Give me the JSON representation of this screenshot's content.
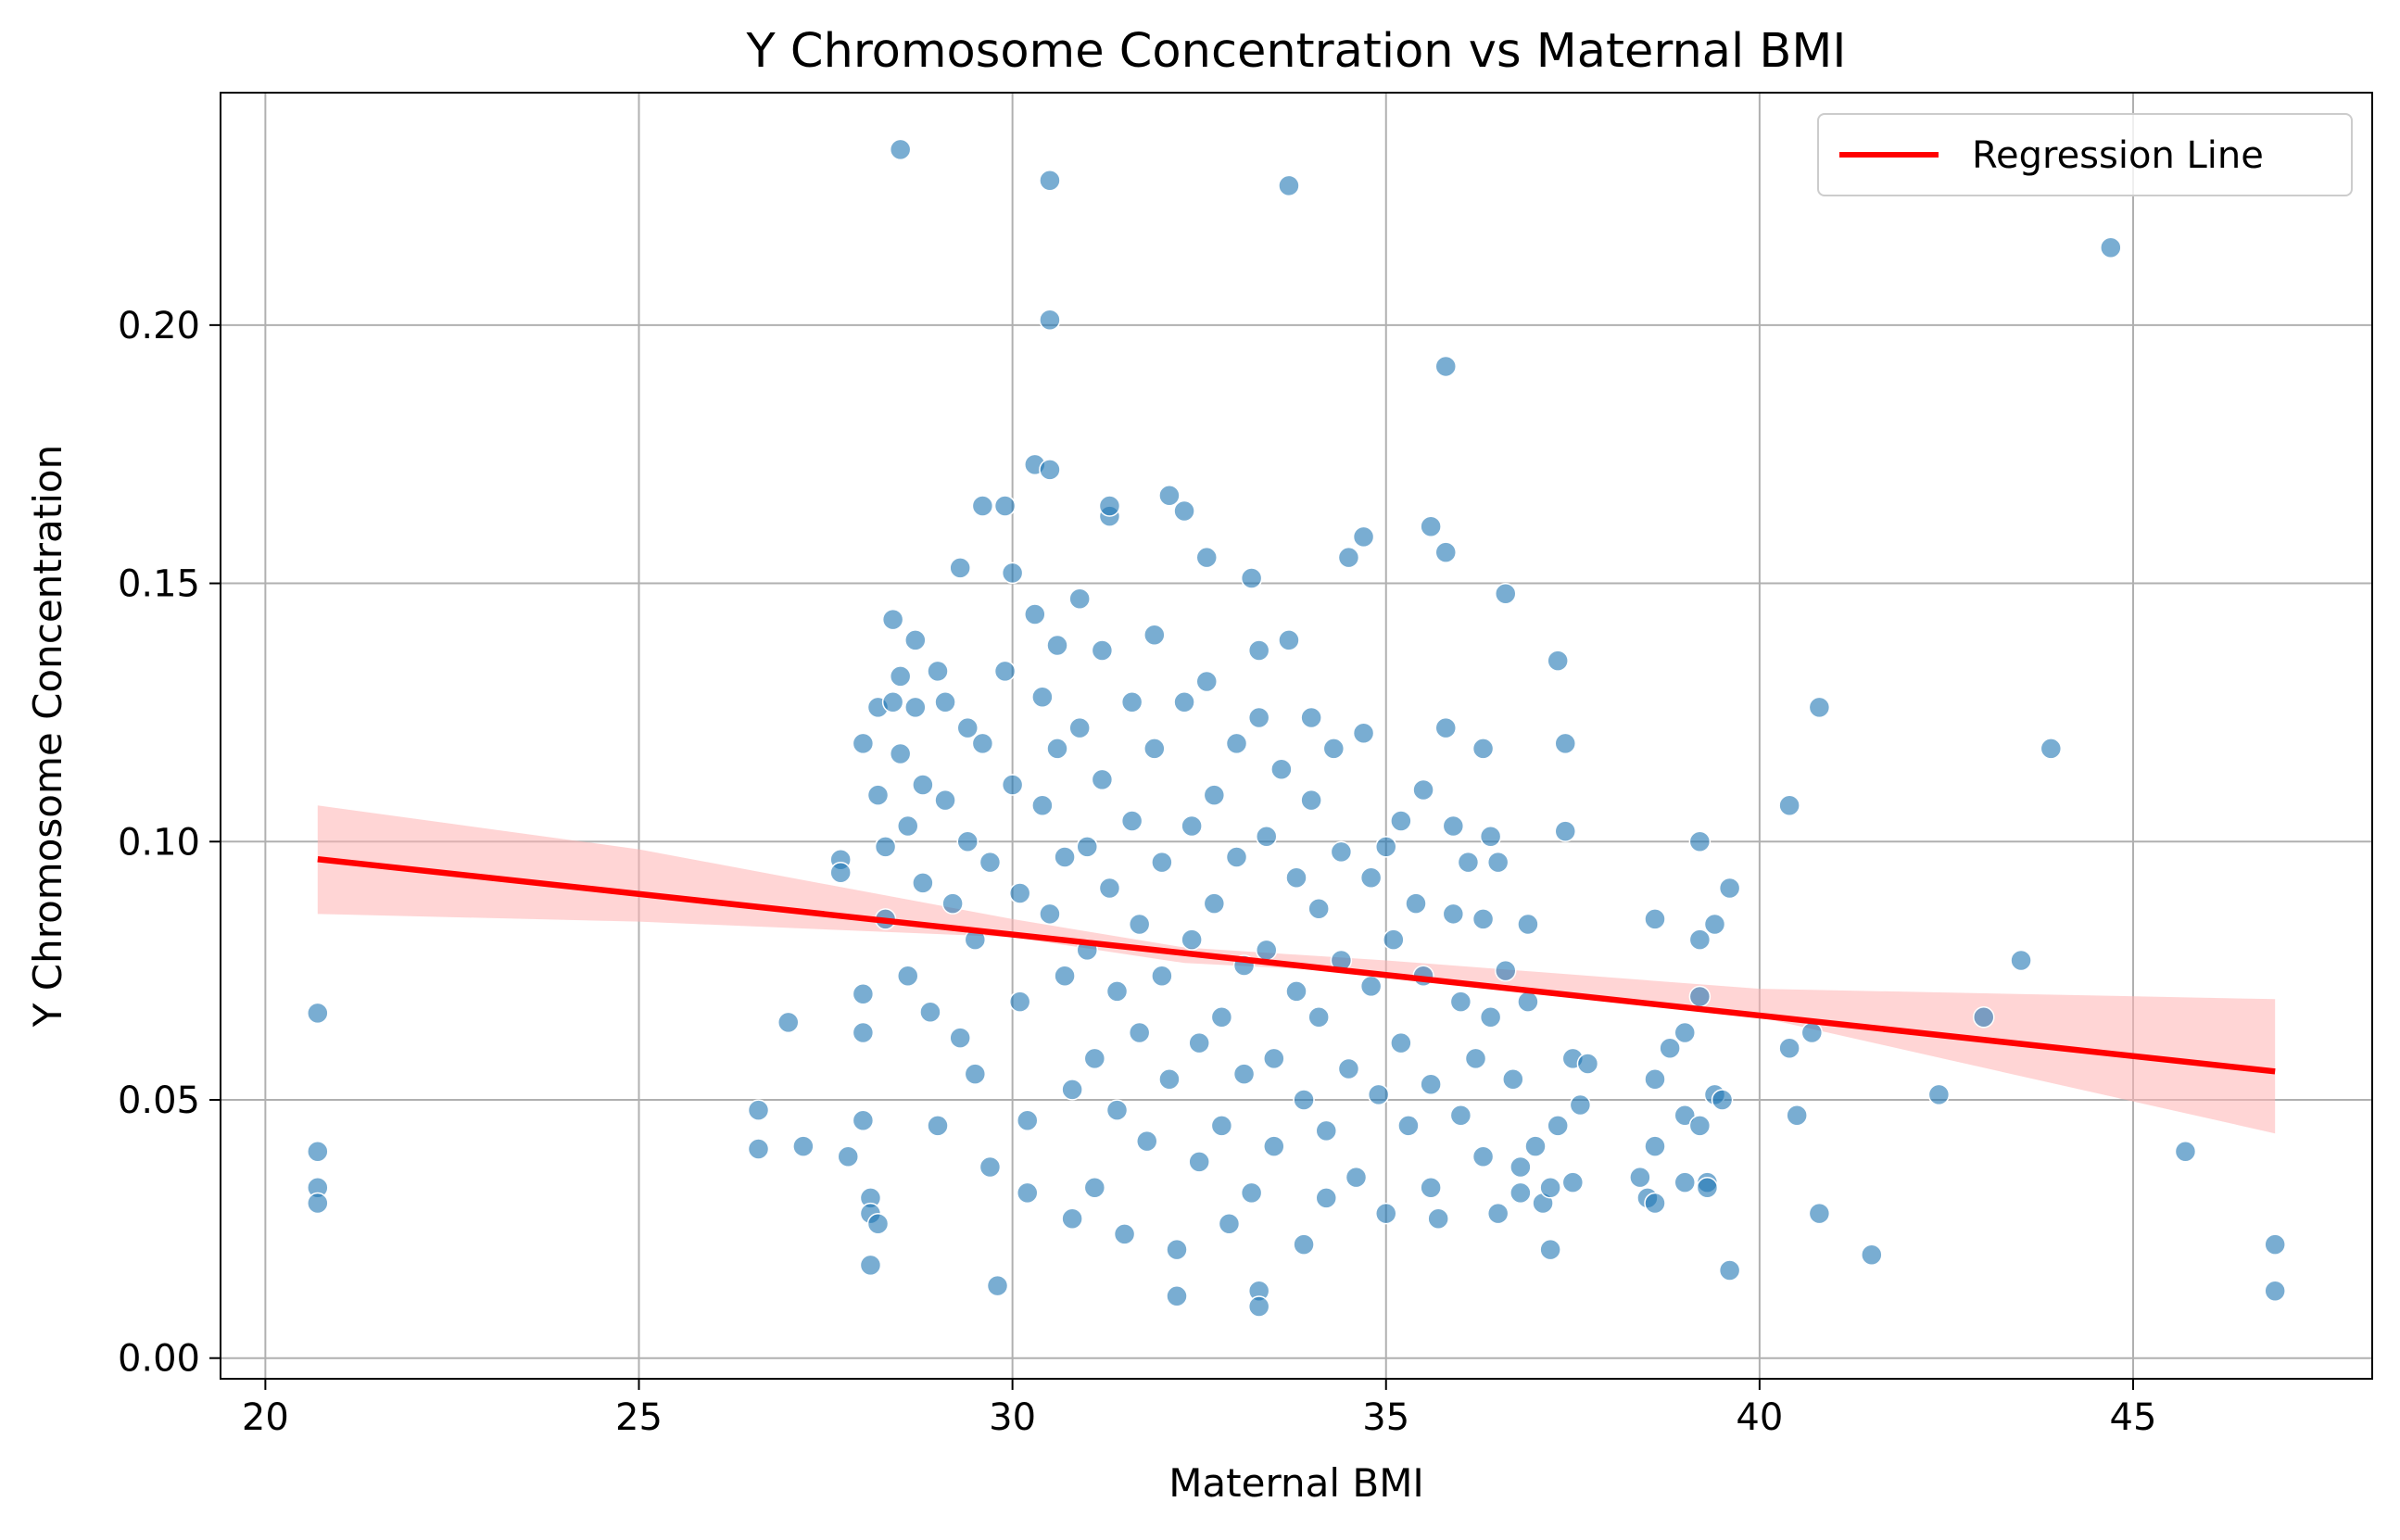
{
  "chart_data": {
    "type": "scatter",
    "title": "Y Chromosome Concentration vs Maternal BMI",
    "xlabel": "Maternal BMI",
    "ylabel": "Y Chromosome Concentration",
    "xlim": [
      19.4,
      48.2
    ],
    "ylim": [
      -0.004,
      0.245
    ],
    "x_ticks": [
      20,
      25,
      30,
      35,
      40,
      45
    ],
    "x_tick_labels": [
      "20",
      "25",
      "30",
      "35",
      "40",
      "45"
    ],
    "y_ticks": [
      0.0,
      0.05,
      0.1,
      0.15,
      0.2
    ],
    "y_tick_labels": [
      "0.00",
      "0.05",
      "0.10",
      "0.15",
      "0.20"
    ],
    "grid": true,
    "legend": {
      "placement": "top-right",
      "entries": [
        "Regression Line"
      ]
    },
    "colors": {
      "points": "#1f77b4",
      "point_edge": "#ffffff",
      "regression_line": "#ff0000",
      "confidence_band": "#ffb3b3",
      "grid": "#b0b0b0"
    },
    "regression": {
      "x": [
        20.7,
        46.9
      ],
      "y": [
        0.0966,
        0.0555
      ],
      "band": {
        "x": [
          20.7,
          25.0,
          30.0,
          32.3,
          35.0,
          40.0,
          46.9
        ],
        "lower": [
          0.086,
          0.0845,
          0.0815,
          0.0765,
          0.0745,
          0.066,
          0.0435
        ],
        "upper": [
          0.107,
          0.0985,
          0.085,
          0.0795,
          0.077,
          0.0715,
          0.0695
        ]
      }
    },
    "series": [
      {
        "points": [
          [
            20.7,
            0.0668
          ],
          [
            20.7,
            0.04
          ],
          [
            20.7,
            0.033
          ],
          [
            20.7,
            0.03
          ],
          [
            26.6,
            0.048
          ],
          [
            26.6,
            0.0405
          ],
          [
            27.0,
            0.065
          ],
          [
            27.2,
            0.041
          ],
          [
            27.7,
            0.0965
          ],
          [
            27.7,
            0.094
          ],
          [
            27.8,
            0.039
          ],
          [
            28.0,
            0.119
          ],
          [
            28.0,
            0.0705
          ],
          [
            28.0,
            0.063
          ],
          [
            28.0,
            0.046
          ],
          [
            28.1,
            0.031
          ],
          [
            28.1,
            0.028
          ],
          [
            28.1,
            0.018
          ],
          [
            28.2,
            0.026
          ],
          [
            28.2,
            0.126
          ],
          [
            28.2,
            0.109
          ],
          [
            28.3,
            0.099
          ],
          [
            28.3,
            0.085
          ],
          [
            28.4,
            0.143
          ],
          [
            28.4,
            0.127
          ],
          [
            28.5,
            0.132
          ],
          [
            28.5,
            0.117
          ],
          [
            28.5,
            0.234
          ],
          [
            28.6,
            0.103
          ],
          [
            28.6,
            0.074
          ],
          [
            28.7,
            0.139
          ],
          [
            28.7,
            0.126
          ],
          [
            28.8,
            0.111
          ],
          [
            28.8,
            0.092
          ],
          [
            28.9,
            0.067
          ],
          [
            29.0,
            0.045
          ],
          [
            29.0,
            0.133
          ],
          [
            29.1,
            0.127
          ],
          [
            29.1,
            0.108
          ],
          [
            29.2,
            0.088
          ],
          [
            29.3,
            0.062
          ],
          [
            29.3,
            0.153
          ],
          [
            29.4,
            0.122
          ],
          [
            29.4,
            0.1
          ],
          [
            29.5,
            0.081
          ],
          [
            29.5,
            0.055
          ],
          [
            29.6,
            0.165
          ],
          [
            29.6,
            0.119
          ],
          [
            29.7,
            0.096
          ],
          [
            29.7,
            0.037
          ],
          [
            29.8,
            0.014
          ],
          [
            29.9,
            0.165
          ],
          [
            29.9,
            0.133
          ],
          [
            30.0,
            0.152
          ],
          [
            30.0,
            0.111
          ],
          [
            30.1,
            0.09
          ],
          [
            30.1,
            0.069
          ],
          [
            30.2,
            0.046
          ],
          [
            30.2,
            0.032
          ],
          [
            30.3,
            0.173
          ],
          [
            30.3,
            0.144
          ],
          [
            30.4,
            0.128
          ],
          [
            30.4,
            0.107
          ],
          [
            30.5,
            0.086
          ],
          [
            30.5,
            0.228
          ],
          [
            30.5,
            0.201
          ],
          [
            30.5,
            0.172
          ],
          [
            30.6,
            0.138
          ],
          [
            30.6,
            0.118
          ],
          [
            30.7,
            0.097
          ],
          [
            30.7,
            0.074
          ],
          [
            30.8,
            0.052
          ],
          [
            30.8,
            0.027
          ],
          [
            30.9,
            0.147
          ],
          [
            30.9,
            0.122
          ],
          [
            31.0,
            0.099
          ],
          [
            31.0,
            0.079
          ],
          [
            31.1,
            0.058
          ],
          [
            31.1,
            0.033
          ],
          [
            31.2,
            0.137
          ],
          [
            31.2,
            0.112
          ],
          [
            31.3,
            0.163
          ],
          [
            31.3,
            0.165
          ],
          [
            31.3,
            0.091
          ],
          [
            31.4,
            0.071
          ],
          [
            31.4,
            0.048
          ],
          [
            31.5,
            0.024
          ],
          [
            31.6,
            0.127
          ],
          [
            31.6,
            0.104
          ],
          [
            31.7,
            0.084
          ],
          [
            31.7,
            0.063
          ],
          [
            31.8,
            0.042
          ],
          [
            31.9,
            0.14
          ],
          [
            31.9,
            0.118
          ],
          [
            32.0,
            0.096
          ],
          [
            32.0,
            0.074
          ],
          [
            32.1,
            0.054
          ],
          [
            32.1,
            0.167
          ],
          [
            32.2,
            0.012
          ],
          [
            32.2,
            0.021
          ],
          [
            32.3,
            0.164
          ],
          [
            32.3,
            0.127
          ],
          [
            32.4,
            0.103
          ],
          [
            32.4,
            0.081
          ],
          [
            32.5,
            0.061
          ],
          [
            32.5,
            0.038
          ],
          [
            32.6,
            0.155
          ],
          [
            32.6,
            0.131
          ],
          [
            32.7,
            0.109
          ],
          [
            32.7,
            0.088
          ],
          [
            32.8,
            0.066
          ],
          [
            32.8,
            0.045
          ],
          [
            32.9,
            0.026
          ],
          [
            33.0,
            0.119
          ],
          [
            33.0,
            0.097
          ],
          [
            33.1,
            0.076
          ],
          [
            33.1,
            0.055
          ],
          [
            33.2,
            0.151
          ],
          [
            33.2,
            0.032
          ],
          [
            33.3,
            0.137
          ],
          [
            33.3,
            0.124
          ],
          [
            33.3,
            0.013
          ],
          [
            33.3,
            0.01
          ],
          [
            33.4,
            0.101
          ],
          [
            33.4,
            0.079
          ],
          [
            33.5,
            0.058
          ],
          [
            33.5,
            0.041
          ],
          [
            33.6,
            0.114
          ],
          [
            33.7,
            0.227
          ],
          [
            33.7,
            0.139
          ],
          [
            33.8,
            0.093
          ],
          [
            33.8,
            0.071
          ],
          [
            33.9,
            0.05
          ],
          [
            33.9,
            0.022
          ],
          [
            34.0,
            0.124
          ],
          [
            34.0,
            0.108
          ],
          [
            34.1,
            0.087
          ],
          [
            34.1,
            0.066
          ],
          [
            34.2,
            0.044
          ],
          [
            34.2,
            0.031
          ],
          [
            34.3,
            0.118
          ],
          [
            34.4,
            0.098
          ],
          [
            34.4,
            0.077
          ],
          [
            34.5,
            0.155
          ],
          [
            34.5,
            0.056
          ],
          [
            34.6,
            0.035
          ],
          [
            34.7,
            0.159
          ],
          [
            34.7,
            0.121
          ],
          [
            34.8,
            0.093
          ],
          [
            34.8,
            0.072
          ],
          [
            34.9,
            0.051
          ],
          [
            35.0,
            0.028
          ],
          [
            35.0,
            0.099
          ],
          [
            35.1,
            0.081
          ],
          [
            35.2,
            0.104
          ],
          [
            35.2,
            0.061
          ],
          [
            35.3,
            0.045
          ],
          [
            35.4,
            0.088
          ],
          [
            35.5,
            0.11
          ],
          [
            35.5,
            0.074
          ],
          [
            35.6,
            0.161
          ],
          [
            35.6,
            0.053
          ],
          [
            35.6,
            0.033
          ],
          [
            35.7,
            0.027
          ],
          [
            35.8,
            0.156
          ],
          [
            35.8,
            0.122
          ],
          [
            35.8,
            0.192
          ],
          [
            35.9,
            0.103
          ],
          [
            35.9,
            0.086
          ],
          [
            36.0,
            0.069
          ],
          [
            36.0,
            0.047
          ],
          [
            36.1,
            0.096
          ],
          [
            36.2,
            0.058
          ],
          [
            36.3,
            0.118
          ],
          [
            36.3,
            0.085
          ],
          [
            36.3,
            0.039
          ],
          [
            36.4,
            0.101
          ],
          [
            36.4,
            0.066
          ],
          [
            36.5,
            0.028
          ],
          [
            36.5,
            0.096
          ],
          [
            36.6,
            0.148
          ],
          [
            36.6,
            0.075
          ],
          [
            36.7,
            0.054
          ],
          [
            36.8,
            0.037
          ],
          [
            36.8,
            0.032
          ],
          [
            36.9,
            0.084
          ],
          [
            36.9,
            0.069
          ],
          [
            37.0,
            0.041
          ],
          [
            37.1,
            0.03
          ],
          [
            37.2,
            0.021
          ],
          [
            37.2,
            0.033
          ],
          [
            37.3,
            0.135
          ],
          [
            37.3,
            0.045
          ],
          [
            37.4,
            0.119
          ],
          [
            37.4,
            0.102
          ],
          [
            37.5,
            0.058
          ],
          [
            37.5,
            0.034
          ],
          [
            37.6,
            0.049
          ],
          [
            37.7,
            0.057
          ],
          [
            38.4,
            0.035
          ],
          [
            38.5,
            0.031
          ],
          [
            38.6,
            0.085
          ],
          [
            38.6,
            0.054
          ],
          [
            38.6,
            0.03
          ],
          [
            38.6,
            0.041
          ],
          [
            38.8,
            0.06
          ],
          [
            39.0,
            0.063
          ],
          [
            39.0,
            0.047
          ],
          [
            39.0,
            0.034
          ],
          [
            39.2,
            0.1
          ],
          [
            39.2,
            0.081
          ],
          [
            39.2,
            0.07
          ],
          [
            39.2,
            0.045
          ],
          [
            39.3,
            0.034
          ],
          [
            39.3,
            0.033
          ],
          [
            39.4,
            0.084
          ],
          [
            39.4,
            0.051
          ],
          [
            39.5,
            0.05
          ],
          [
            39.6,
            0.091
          ],
          [
            39.6,
            0.017
          ],
          [
            40.4,
            0.107
          ],
          [
            40.4,
            0.06
          ],
          [
            40.5,
            0.047
          ],
          [
            40.7,
            0.063
          ],
          [
            40.8,
            0.126
          ],
          [
            40.8,
            0.028
          ],
          [
            41.5,
            0.02
          ],
          [
            42.4,
            0.051
          ],
          [
            43.0,
            0.066
          ],
          [
            43.5,
            0.077
          ],
          [
            43.9,
            0.118
          ],
          [
            44.7,
            0.215
          ],
          [
            45.7,
            0.04
          ],
          [
            46.9,
            0.022
          ],
          [
            46.9,
            0.013
          ]
        ]
      }
    ]
  }
}
